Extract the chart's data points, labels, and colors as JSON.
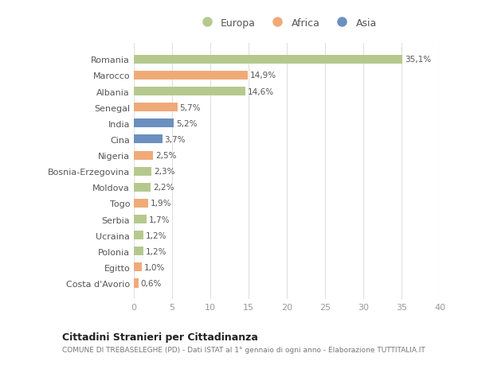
{
  "countries": [
    "Romania",
    "Marocco",
    "Albania",
    "Senegal",
    "India",
    "Cina",
    "Nigeria",
    "Bosnia-Erzegovina",
    "Moldova",
    "Togo",
    "Serbia",
    "Ucraina",
    "Polonia",
    "Egitto",
    "Costa d'Avorio"
  ],
  "values": [
    35.1,
    14.9,
    14.6,
    5.7,
    5.2,
    3.7,
    2.5,
    2.3,
    2.2,
    1.9,
    1.7,
    1.2,
    1.2,
    1.0,
    0.6
  ],
  "labels": [
    "35,1%",
    "14,9%",
    "14,6%",
    "5,7%",
    "5,2%",
    "3,7%",
    "2,5%",
    "2,3%",
    "2,2%",
    "1,9%",
    "1,7%",
    "1,2%",
    "1,2%",
    "1,0%",
    "0,6%"
  ],
  "continents": [
    "Europa",
    "Africa",
    "Europa",
    "Africa",
    "Asia",
    "Asia",
    "Africa",
    "Europa",
    "Europa",
    "Africa",
    "Europa",
    "Europa",
    "Europa",
    "Africa",
    "Africa"
  ],
  "colors": {
    "Europa": "#b5c98e",
    "Africa": "#f0aa78",
    "Asia": "#6b8fbf"
  },
  "title": "Cittadini Stranieri per Cittadinanza",
  "subtitle": "COMUNE DI TREBASELEGHE (PD) - Dati ISTAT al 1° gennaio di ogni anno - Elaborazione TUTTITALIA.IT",
  "xlim": [
    0,
    40
  ],
  "xticks": [
    0,
    5,
    10,
    15,
    20,
    25,
    30,
    35,
    40
  ],
  "bg_color": "#ffffff",
  "plot_bg_color": "#ffffff",
  "grid_color": "#e0e0e0",
  "bar_height": 0.55
}
